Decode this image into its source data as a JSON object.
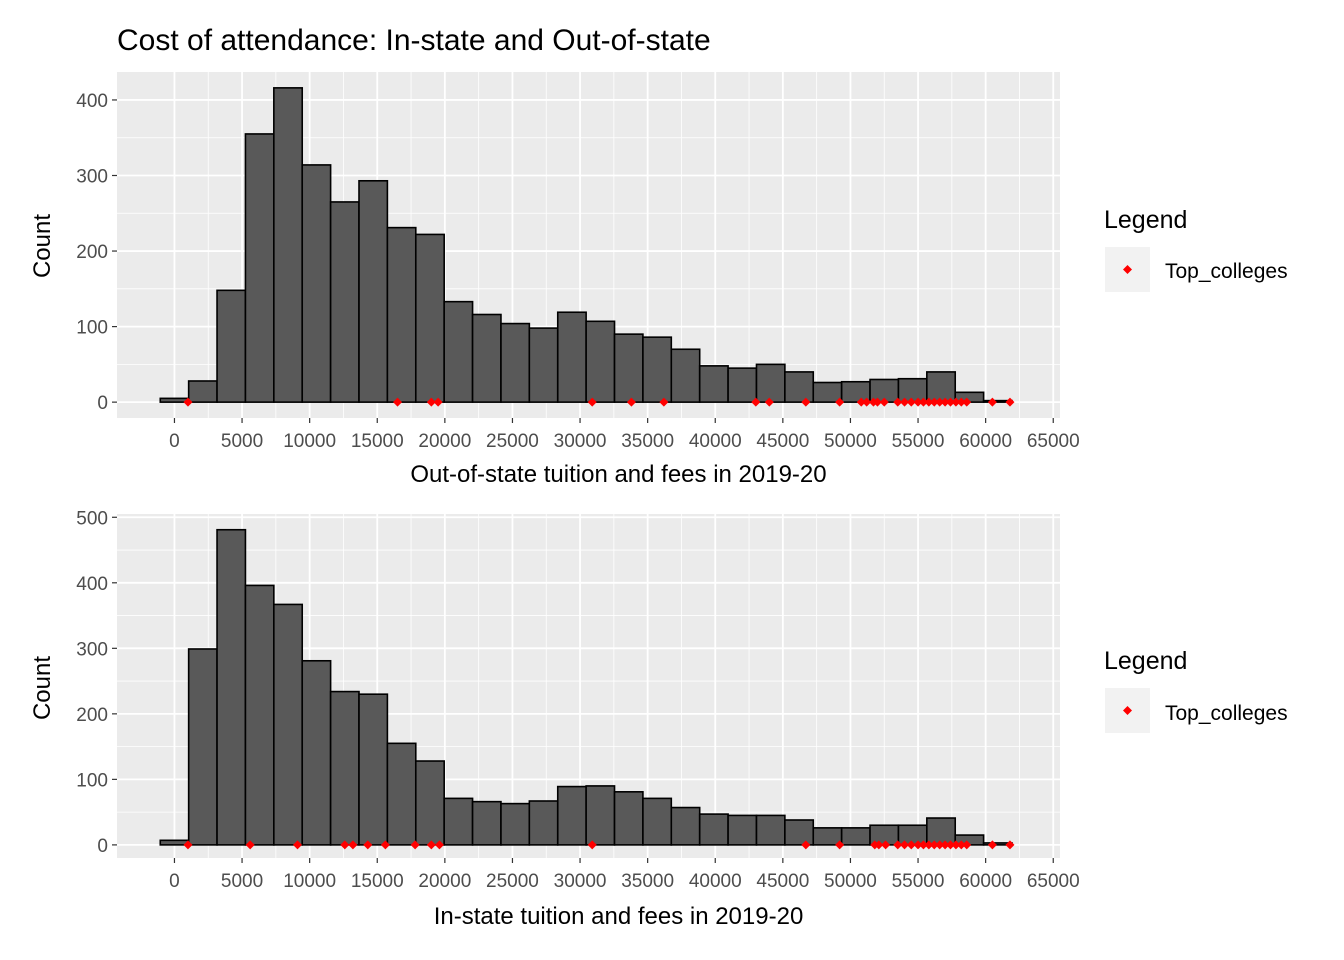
{
  "title": "Cost of attendance: In-state and Out-of-state",
  "colors": {
    "panel_bg": "#EBEBEB",
    "grid_major": "#FFFFFF",
    "bar_fill": "#595959",
    "bar_stroke": "#000000",
    "point": "#FF0000",
    "legend_key_bg": "#F2F2F2",
    "tick_text": "#4D4D4D"
  },
  "chart_data": [
    {
      "type": "histogram",
      "xlabel": "Out-of-state tuition and fees in 2019-20",
      "ylabel": "Count",
      "x_ticks": [
        0,
        5000,
        10000,
        15000,
        20000,
        25000,
        30000,
        35000,
        40000,
        45000,
        50000,
        55000,
        60000,
        65000
      ],
      "y_ticks": [
        0,
        100,
        200,
        300,
        400
      ],
      "xlim": [
        -4250,
        65500
      ],
      "ylim": [
        -21,
        437
      ],
      "grid": true,
      "bin_width": 2100,
      "bins": [
        {
          "start": -1050,
          "end": 1050,
          "count": 5
        },
        {
          "start": 1050,
          "end": 3150,
          "count": 28
        },
        {
          "start": 3150,
          "end": 5250,
          "count": 148
        },
        {
          "start": 5250,
          "end": 7350,
          "count": 355
        },
        {
          "start": 7350,
          "end": 9450,
          "count": 416
        },
        {
          "start": 9450,
          "end": 11550,
          "count": 314
        },
        {
          "start": 11550,
          "end": 13650,
          "count": 265
        },
        {
          "start": 13650,
          "end": 15750,
          "count": 293
        },
        {
          "start": 15750,
          "end": 17850,
          "count": 231
        },
        {
          "start": 17850,
          "end": 19950,
          "count": 222
        },
        {
          "start": 19950,
          "end": 22050,
          "count": 133
        },
        {
          "start": 22050,
          "end": 24150,
          "count": 116
        },
        {
          "start": 24150,
          "end": 26250,
          "count": 104
        },
        {
          "start": 26250,
          "end": 28350,
          "count": 98
        },
        {
          "start": 28350,
          "end": 30450,
          "count": 119
        },
        {
          "start": 30450,
          "end": 32550,
          "count": 107
        },
        {
          "start": 32550,
          "end": 34650,
          "count": 90
        },
        {
          "start": 34650,
          "end": 36750,
          "count": 86
        },
        {
          "start": 36750,
          "end": 38850,
          "count": 70
        },
        {
          "start": 38850,
          "end": 40950,
          "count": 48
        },
        {
          "start": 40950,
          "end": 43050,
          "count": 45
        },
        {
          "start": 43050,
          "end": 45150,
          "count": 50
        },
        {
          "start": 45150,
          "end": 47250,
          "count": 40
        },
        {
          "start": 47250,
          "end": 49350,
          "count": 26
        },
        {
          "start": 49350,
          "end": 51450,
          "count": 27
        },
        {
          "start": 51450,
          "end": 53550,
          "count": 30
        },
        {
          "start": 53550,
          "end": 55650,
          "count": 31
        },
        {
          "start": 55650,
          "end": 57750,
          "count": 40
        },
        {
          "start": 57750,
          "end": 59850,
          "count": 13
        },
        {
          "start": 59850,
          "end": 61950,
          "count": 2
        }
      ],
      "points": {
        "name": "Top_colleges",
        "y": 0,
        "x": [
          1000,
          16500,
          19000,
          19500,
          30900,
          33800,
          36200,
          43000,
          44000,
          46700,
          49200,
          50800,
          51200,
          51700,
          52000,
          52500,
          53500,
          54000,
          54500,
          55000,
          55400,
          55800,
          56200,
          56600,
          57000,
          57400,
          57800,
          58200,
          58600,
          60500,
          61800
        ]
      }
    },
    {
      "type": "histogram",
      "xlabel": "In-state tuition and fees in 2019-20",
      "ylabel": "Count",
      "x_ticks": [
        0,
        5000,
        10000,
        15000,
        20000,
        25000,
        30000,
        35000,
        40000,
        45000,
        50000,
        55000,
        60000,
        65000
      ],
      "y_ticks": [
        0,
        100,
        200,
        300,
        400,
        500
      ],
      "xlim": [
        -4250,
        65500
      ],
      "ylim": [
        -20,
        505
      ],
      "grid": true,
      "bin_width": 2100,
      "bins": [
        {
          "start": -1050,
          "end": 1050,
          "count": 7
        },
        {
          "start": 1050,
          "end": 3150,
          "count": 299
        },
        {
          "start": 3150,
          "end": 5250,
          "count": 481
        },
        {
          "start": 5250,
          "end": 7350,
          "count": 396
        },
        {
          "start": 7350,
          "end": 9450,
          "count": 367
        },
        {
          "start": 9450,
          "end": 11550,
          "count": 281
        },
        {
          "start": 11550,
          "end": 13650,
          "count": 234
        },
        {
          "start": 13650,
          "end": 15750,
          "count": 230
        },
        {
          "start": 15750,
          "end": 17850,
          "count": 155
        },
        {
          "start": 17850,
          "end": 19950,
          "count": 128
        },
        {
          "start": 19950,
          "end": 22050,
          "count": 71
        },
        {
          "start": 22050,
          "end": 24150,
          "count": 66
        },
        {
          "start": 24150,
          "end": 26250,
          "count": 63
        },
        {
          "start": 26250,
          "end": 28350,
          "count": 67
        },
        {
          "start": 28350,
          "end": 30450,
          "count": 89
        },
        {
          "start": 30450,
          "end": 32550,
          "count": 90
        },
        {
          "start": 32550,
          "end": 34650,
          "count": 81
        },
        {
          "start": 34650,
          "end": 36750,
          "count": 71
        },
        {
          "start": 36750,
          "end": 38850,
          "count": 57
        },
        {
          "start": 38850,
          "end": 40950,
          "count": 47
        },
        {
          "start": 40950,
          "end": 43050,
          "count": 45
        },
        {
          "start": 43050,
          "end": 45150,
          "count": 45
        },
        {
          "start": 45150,
          "end": 47250,
          "count": 38
        },
        {
          "start": 47250,
          "end": 49350,
          "count": 26
        },
        {
          "start": 49350,
          "end": 51450,
          "count": 26
        },
        {
          "start": 51450,
          "end": 53550,
          "count": 30
        },
        {
          "start": 53550,
          "end": 55650,
          "count": 30
        },
        {
          "start": 55650,
          "end": 57750,
          "count": 41
        },
        {
          "start": 57750,
          "end": 59850,
          "count": 15
        },
        {
          "start": 59850,
          "end": 61950,
          "count": 3
        }
      ],
      "points": {
        "name": "Top_colleges",
        "y": 0,
        "x": [
          1000,
          5600,
          9100,
          12600,
          13200,
          14300,
          15600,
          17800,
          19000,
          19600,
          30900,
          46700,
          49200,
          51800,
          52100,
          52600,
          53500,
          54000,
          54500,
          55000,
          55400,
          55800,
          56200,
          56600,
          57000,
          57400,
          57800,
          58200,
          58600,
          60500,
          61800
        ]
      }
    }
  ],
  "legends": [
    {
      "title": "Legend",
      "label": "Top_colleges"
    },
    {
      "title": "Legend",
      "label": "Top_colleges"
    }
  ]
}
